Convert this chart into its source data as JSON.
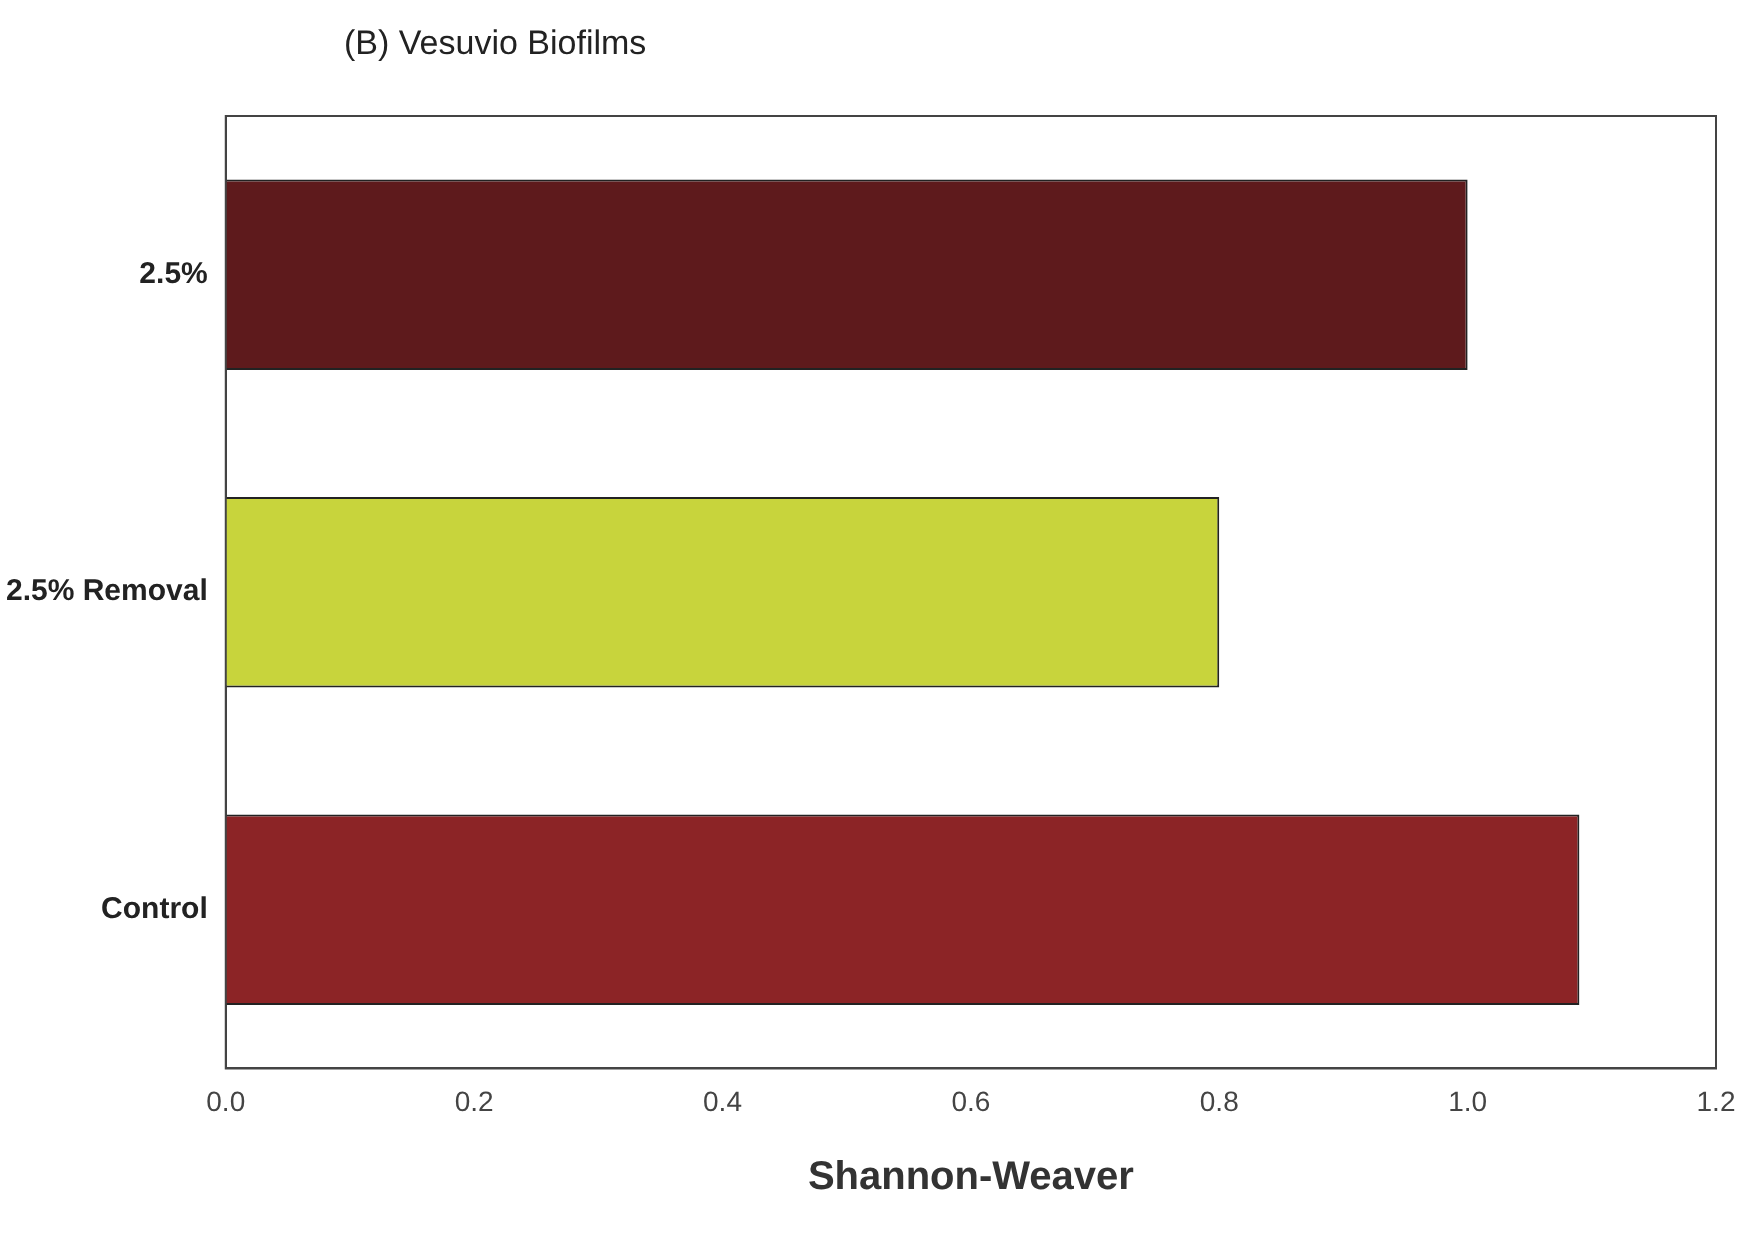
{
  "chart_data": {
    "type": "bar",
    "orientation": "horizontal",
    "title": "(B) Vesuvio Biofilms",
    "xlabel": "Shannon-Weaver",
    "categories": [
      "2.5%",
      "2.5% Removal",
      "Control"
    ],
    "values": [
      1.0,
      0.8,
      1.09
    ],
    "colors": [
      "#5e1a1c",
      "#c8d43c",
      "#8c2426"
    ],
    "xlim": [
      0,
      1.2
    ],
    "xticks": [
      {
        "value": 0,
        "label": "0.0"
      },
      {
        "value": 0.2,
        "label": "0.2"
      },
      {
        "value": 0.4,
        "label": "0.4"
      },
      {
        "value": 0.6,
        "label": "0.6"
      },
      {
        "value": 0.8,
        "label": "0.8"
      },
      {
        "value": 1,
        "label": "1.0"
      },
      {
        "value": 1.2,
        "label": "1.2"
      }
    ],
    "grid": false,
    "legend": false
  }
}
